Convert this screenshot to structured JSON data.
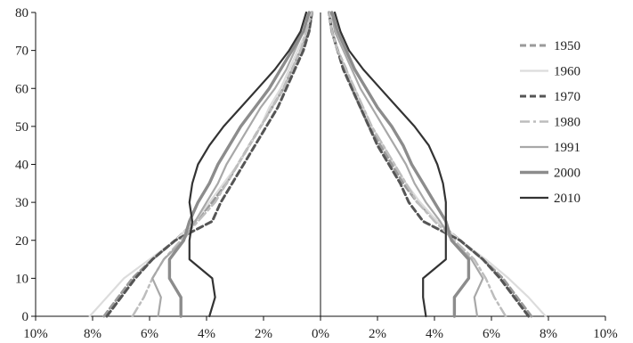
{
  "chart_data": {
    "type": "line",
    "chart_kind": "population-pyramid",
    "title": "",
    "xlabel": "",
    "ylabel": "",
    "xlim": [
      -10,
      10
    ],
    "ylim": [
      0,
      80
    ],
    "x_ticks": [
      -10,
      -8,
      -6,
      -4,
      -2,
      0,
      2,
      4,
      6,
      8,
      10
    ],
    "x_tick_labels": [
      "10%",
      "8%",
      "6%",
      "4%",
      "2%",
      "0%",
      "2%",
      "4%",
      "6%",
      "8%",
      "10%"
    ],
    "y_ticks": [
      0,
      10,
      20,
      30,
      40,
      50,
      60,
      70,
      80
    ],
    "y_tick_labels": [
      "0",
      "10",
      "20",
      "30",
      "40",
      "50",
      "60",
      "70",
      "80"
    ],
    "grid": false,
    "legend_position": "right",
    "ages": [
      0,
      5,
      10,
      15,
      20,
      25,
      30,
      35,
      40,
      45,
      50,
      55,
      60,
      65,
      70,
      75,
      80
    ],
    "series": [
      {
        "name": "1950",
        "color": "#9a9a9a",
        "line_style": "dashed",
        "left": [
          7.6,
          7.1,
          6.6,
          5.9,
          5.1,
          4.4,
          3.8,
          3.3,
          2.9,
          2.5,
          2.1,
          1.7,
          1.3,
          1.0,
          0.7,
          0.4,
          0.3
        ],
        "right": [
          7.4,
          6.9,
          6.4,
          5.7,
          4.9,
          4.1,
          3.4,
          2.9,
          2.5,
          2.1,
          1.7,
          1.4,
          1.1,
          0.9,
          0.6,
          0.4,
          0.3
        ]
      },
      {
        "name": "1960",
        "color": "#dcdcdc",
        "line_style": "solid",
        "left": [
          8.1,
          7.5,
          6.9,
          6.0,
          5.1,
          4.4,
          3.9,
          3.4,
          2.9,
          2.5,
          2.1,
          1.8,
          1.4,
          1.1,
          0.8,
          0.5,
          0.3
        ],
        "right": [
          7.9,
          7.3,
          6.6,
          5.8,
          4.9,
          4.1,
          3.5,
          3.0,
          2.6,
          2.2,
          1.8,
          1.5,
          1.2,
          0.9,
          0.6,
          0.4,
          0.3
        ]
      },
      {
        "name": "1970",
        "color": "#555555",
        "line_style": "dashed",
        "left": [
          7.5,
          7.0,
          6.5,
          5.9,
          5.1,
          3.8,
          3.5,
          3.1,
          2.7,
          2.3,
          1.9,
          1.5,
          1.2,
          0.9,
          0.6,
          0.4,
          0.3
        ],
        "right": [
          7.3,
          6.8,
          6.3,
          5.7,
          4.9,
          3.6,
          3.1,
          2.8,
          2.4,
          2.0,
          1.7,
          1.4,
          1.1,
          0.8,
          0.6,
          0.4,
          0.3
        ]
      },
      {
        "name": "1980",
        "color": "#bdbdbd",
        "line_style": "dash-dot",
        "left": [
          6.6,
          6.2,
          5.9,
          5.5,
          4.9,
          4.3,
          3.7,
          3.3,
          2.9,
          2.5,
          2.1,
          1.7,
          1.3,
          1.0,
          0.7,
          0.5,
          0.3
        ],
        "right": [
          6.5,
          6.1,
          5.8,
          5.4,
          4.7,
          4.0,
          3.4,
          3.0,
          2.6,
          2.2,
          1.8,
          1.5,
          1.2,
          0.9,
          0.6,
          0.4,
          0.3
        ]
      },
      {
        "name": "1991",
        "color": "#a8a8a8",
        "line_style": "solid",
        "left": [
          5.7,
          5.6,
          5.9,
          5.5,
          4.8,
          4.4,
          4.0,
          3.6,
          3.3,
          2.9,
          2.5,
          2.1,
          1.6,
          1.2,
          0.9,
          0.6,
          0.4
        ],
        "right": [
          5.5,
          5.4,
          5.7,
          5.3,
          4.6,
          4.2,
          3.7,
          3.3,
          3.0,
          2.6,
          2.2,
          1.8,
          1.4,
          1.1,
          0.8,
          0.5,
          0.4
        ]
      },
      {
        "name": "2000",
        "color": "#8c8c8c",
        "line_style": "solid-thick",
        "left": [
          4.9,
          4.9,
          5.3,
          5.3,
          4.8,
          4.6,
          4.3,
          3.9,
          3.6,
          3.2,
          2.8,
          2.3,
          1.8,
          1.4,
          1.0,
          0.6,
          0.4
        ],
        "right": [
          4.7,
          4.7,
          5.2,
          5.2,
          4.6,
          4.4,
          4.0,
          3.6,
          3.2,
          2.9,
          2.5,
          2.0,
          1.6,
          1.2,
          0.9,
          0.6,
          0.4
        ]
      },
      {
        "name": "2010",
        "color": "#333333",
        "line_style": "solid",
        "left": [
          3.9,
          3.7,
          3.8,
          4.6,
          4.6,
          4.5,
          4.6,
          4.5,
          4.3,
          3.9,
          3.4,
          2.8,
          2.2,
          1.6,
          1.1,
          0.7,
          0.5
        ],
        "right": [
          3.7,
          3.6,
          3.6,
          4.4,
          4.4,
          4.4,
          4.4,
          4.3,
          4.1,
          3.8,
          3.3,
          2.7,
          2.1,
          1.5,
          1.0,
          0.7,
          0.5
        ]
      }
    ]
  }
}
